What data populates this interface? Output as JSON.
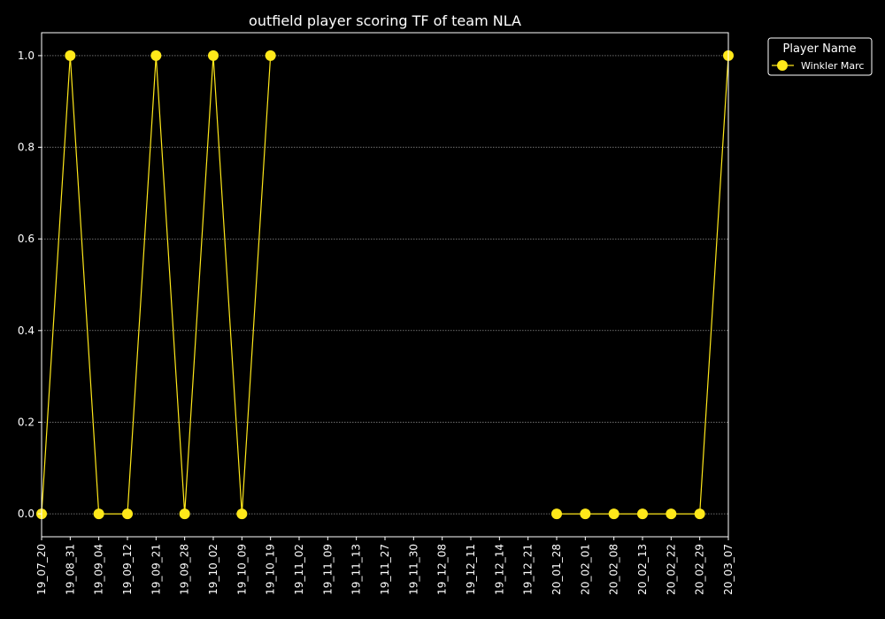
{
  "chart_data": {
    "type": "line",
    "title": "outfield player scoring TF of team NLA",
    "xlabel": "",
    "ylabel": "",
    "ylim": [
      -0.05,
      1.05
    ],
    "grid": "y-dotted",
    "legend": {
      "title": "Player Name",
      "placement": "outside-top-right"
    },
    "categories": [
      "19_07_20",
      "19_08_31",
      "19_09_04",
      "19_09_12",
      "19_09_21",
      "19_09_28",
      "19_10_02",
      "19_10_09",
      "19_10_19",
      "19_11_02",
      "19_11_09",
      "19_11_13",
      "19_11_27",
      "19_11_30",
      "19_12_08",
      "19_12_11",
      "19_12_14",
      "19_12_21",
      "20_01_28",
      "20_02_01",
      "20_02_08",
      "20_02_13",
      "20_02_22",
      "20_02_29",
      "20_03_07"
    ],
    "y_ticks": [
      "0.0",
      "0.2",
      "0.4",
      "0.6",
      "0.8",
      "1.0"
    ],
    "series": [
      {
        "name": "Winkler Marc",
        "color": "#ffe81a",
        "values": [
          0,
          1,
          0,
          0,
          1,
          0,
          1,
          0,
          1,
          null,
          null,
          null,
          null,
          null,
          null,
          null,
          null,
          null,
          0,
          0,
          0,
          0,
          0,
          0,
          1
        ]
      }
    ]
  }
}
